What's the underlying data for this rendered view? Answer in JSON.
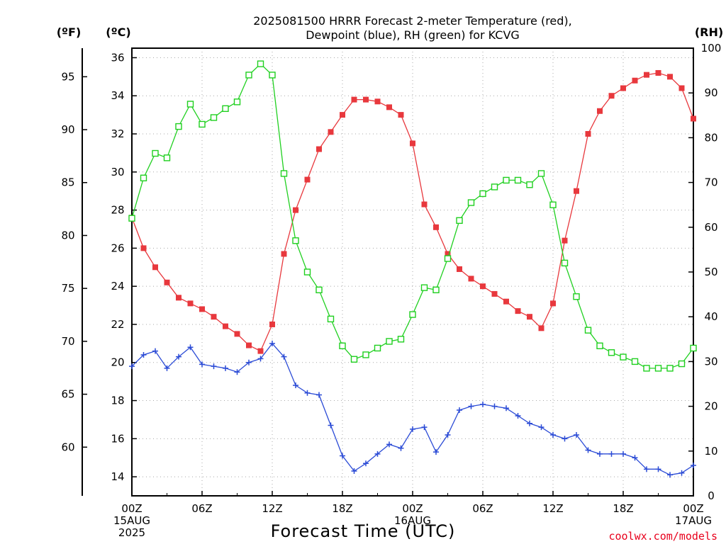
{
  "title_line1": "2025081500 HRRR Forecast 2-meter Temperature (red),",
  "title_line2": "Dewpoint (blue), RH (green) for KCVG",
  "unit_f": "(ºF)",
  "unit_c": "(ºC)",
  "unit_rh": "(RH)",
  "x_axis_title": "Forecast Time (UTC)",
  "credit": "coolwx.com/models",
  "colors": {
    "temperature": "#e8383d",
    "dewpoint": "#2b4bd6",
    "rh": "#20d020"
  },
  "chart_data": {
    "type": "line",
    "title": "2025081500 HRRR Forecast 2-meter Temperature (red), Dewpoint (blue), RH (green) for KCVG",
    "x_unit": "forecast hour",
    "x": [
      0,
      1,
      2,
      3,
      4,
      5,
      6,
      7,
      8,
      9,
      10,
      11,
      12,
      13,
      14,
      15,
      16,
      17,
      18,
      19,
      20,
      21,
      22,
      23,
      24,
      25,
      26,
      27,
      28,
      29,
      30,
      31,
      32,
      33,
      34,
      35,
      36,
      37,
      38,
      39,
      40,
      41,
      42,
      43,
      44,
      45,
      46,
      47,
      48
    ],
    "x_ticks": [
      {
        "x": 0,
        "lines": [
          "00Z",
          "15AUG",
          "2025"
        ]
      },
      {
        "x": 6,
        "lines": [
          "06Z"
        ]
      },
      {
        "x": 12,
        "lines": [
          "12Z"
        ]
      },
      {
        "x": 18,
        "lines": [
          "18Z"
        ]
      },
      {
        "x": 24,
        "lines": [
          "00Z",
          "16AUG"
        ]
      },
      {
        "x": 30,
        "lines": [
          "06Z"
        ]
      },
      {
        "x": 36,
        "lines": [
          "12Z"
        ]
      },
      {
        "x": 42,
        "lines": [
          "18Z"
        ]
      },
      {
        "x": 48,
        "lines": [
          "00Z",
          "17AUG"
        ]
      }
    ],
    "y_celsius": {
      "range": [
        13.0,
        36.5
      ],
      "ticks": [
        14,
        16,
        18,
        20,
        22,
        24,
        26,
        28,
        30,
        32,
        34,
        36
      ]
    },
    "y_fahrenheit": {
      "ticks": [
        60,
        65,
        70,
        75,
        80,
        85,
        90,
        95
      ]
    },
    "y_rh": {
      "range": [
        0,
        100
      ],
      "ticks": [
        0,
        10,
        20,
        30,
        40,
        50,
        60,
        70,
        80,
        90,
        100
      ]
    },
    "series": [
      {
        "name": "Temperature",
        "axis": "celsius",
        "marker": "square",
        "values": [
          27.6,
          26.0,
          25.0,
          24.2,
          23.4,
          23.1,
          22.8,
          22.4,
          21.9,
          21.5,
          20.9,
          20.6,
          22.0,
          25.7,
          28.0,
          29.6,
          31.2,
          32.1,
          33.0,
          33.8,
          33.8,
          33.7,
          33.4,
          33.0,
          31.5,
          28.3,
          27.1,
          25.7,
          24.9,
          24.4,
          24.0,
          23.6,
          23.2,
          22.7,
          22.4,
          21.8,
          23.1,
          26.4,
          29.0,
          32.0,
          33.2,
          34.0,
          34.4,
          34.8,
          35.1,
          35.2,
          35.0,
          34.4,
          32.8
        ]
      },
      {
        "name": "Dewpoint",
        "axis": "celsius",
        "marker": "plus",
        "values": [
          19.8,
          20.4,
          20.6,
          19.7,
          20.3,
          20.8,
          19.9,
          19.8,
          19.7,
          19.5,
          20.0,
          20.2,
          21.0,
          20.3,
          18.8,
          18.4,
          18.3,
          16.7,
          15.1,
          14.3,
          14.7,
          15.2,
          15.7,
          15.5,
          16.5,
          16.6,
          15.3,
          16.2,
          17.5,
          17.7,
          17.8,
          17.7,
          17.6,
          17.2,
          16.8,
          16.6,
          16.2,
          16.0,
          16.2,
          15.4,
          15.2,
          15.2,
          15.2,
          15.0,
          14.4,
          14.4,
          14.1,
          14.2,
          14.6
        ]
      },
      {
        "name": "RH",
        "axis": "rh",
        "marker": "open-square",
        "values": [
          62,
          71,
          76.5,
          75.5,
          82.5,
          87.5,
          83,
          84.5,
          86.5,
          88,
          94,
          96.5,
          94,
          72,
          57,
          50,
          46,
          39.5,
          33.5,
          30.5,
          31.5,
          33,
          34.5,
          35,
          40.5,
          46.5,
          46,
          53,
          61.5,
          65.5,
          67.5,
          69,
          70.5,
          70.5,
          69.5,
          72,
          65,
          52,
          44.5,
          37,
          33.5,
          32,
          31,
          30,
          28.5,
          28.5,
          28.5,
          29.5,
          33
        ]
      }
    ]
  }
}
